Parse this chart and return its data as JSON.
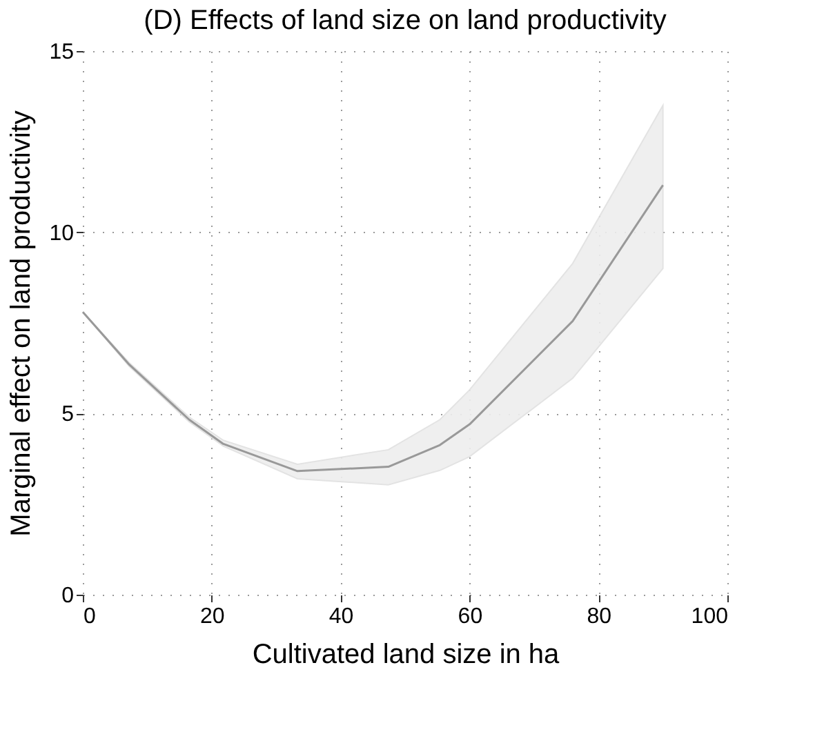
{
  "chart_data": {
    "type": "line",
    "title": "(D) Effects of land size on land productivity",
    "xlabel": "Cultivated land size in ha",
    "ylabel": "Marginal effect on land productivity",
    "x": [
      0,
      7.2,
      16.5,
      21.8,
      33.3,
      47.4,
      55.4,
      60,
      76,
      90
    ],
    "series": [
      {
        "color": "#999999",
        "values": [
          7.8,
          6.35,
          4.83,
          4.16,
          3.41,
          3.53,
          4.13,
          4.7,
          7.55,
          11.3
        ],
        "lower": [
          7.8,
          6.3,
          4.77,
          4.1,
          3.2,
          3.03,
          3.43,
          3.81,
          5.97,
          9.0
        ],
        "upper": [
          7.8,
          6.4,
          4.9,
          4.26,
          3.6,
          4.0,
          4.83,
          5.65,
          9.14,
          13.5
        ]
      }
    ],
    "xlim": [
      0,
      100
    ],
    "ylim": [
      0,
      15
    ],
    "xticks": [
      0,
      20,
      40,
      60,
      80,
      100
    ],
    "yticks": [
      0,
      5,
      10,
      15
    ],
    "grid": true
  }
}
